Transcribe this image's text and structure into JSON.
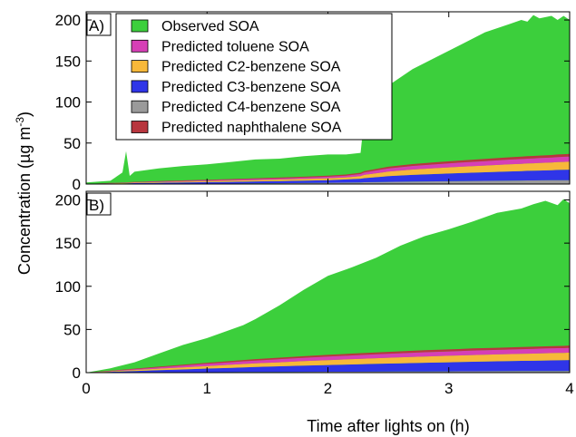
{
  "figure": {
    "ylabel_main": "Concentration (µg m",
    "ylabel_exp": "-3",
    "ylabel_close": ")",
    "xlabel": "Time after lights on (h)"
  },
  "colors": {
    "observed": "#3ccf3c",
    "toluene": "#d63fb6",
    "c2benzene": "#f7b83a",
    "c3benzene": "#2f35e8",
    "c4benzene": "#9a9a9a",
    "naphthalene": "#b8363e"
  },
  "chart_data": [
    {
      "type": "area",
      "panel_label": "A)",
      "xlim": [
        0,
        4
      ],
      "ylim": [
        0,
        210
      ],
      "x_ticks": [
        0,
        1,
        2,
        3,
        4
      ],
      "x_tick_labels": [
        "0",
        "1",
        "2",
        "3",
        "4"
      ],
      "y_ticks": [
        0,
        50,
        100,
        150,
        200
      ],
      "y_tick_labels": [
        "0",
        "50",
        "100",
        "150",
        "200"
      ],
      "legend": {
        "placement": "top-left",
        "entries": [
          "Observed SOA",
          "Predicted toluene SOA",
          "Predicted C2-benzene SOA",
          "Predicted C3-benzene SOA",
          "Predicted C4-benzene SOA",
          "Predicted naphthalene SOA"
        ]
      },
      "x": [
        0,
        0.2,
        0.3,
        0.33,
        0.36,
        0.4,
        0.6,
        0.8,
        1.0,
        1.2,
        1.4,
        1.6,
        1.8,
        2.0,
        2.15,
        2.27,
        2.3,
        2.45,
        2.5,
        2.7,
        2.9,
        3.1,
        3.3,
        3.5,
        3.6,
        3.65,
        3.7,
        3.75,
        3.85,
        3.9,
        3.95,
        4.0
      ],
      "series": [
        {
          "name": "Predicted C4-benzene SOA",
          "key": "c4benzene",
          "values": [
            0,
            0.1,
            0.1,
            0.1,
            0.2,
            0.2,
            0.3,
            0.4,
            0.5,
            0.6,
            0.8,
            1.0,
            1.2,
            1.5,
            1.8,
            2.0,
            2.2,
            2.5,
            2.6,
            3.0,
            3.3,
            3.6,
            3.9,
            4.2,
            4.3,
            4.4,
            4.4,
            4.5,
            4.6,
            4.7,
            4.7,
            4.8
          ]
        },
        {
          "name": "Predicted C3-benzene SOA",
          "key": "c3benzene",
          "values": [
            0,
            0.4,
            0.6,
            0.7,
            0.8,
            0.9,
            1.2,
            1.5,
            1.8,
            2.1,
            2.4,
            2.7,
            3.0,
            3.3,
            3.8,
            4.5,
            5.0,
            6.5,
            7.0,
            8.2,
            9.0,
            9.8,
            10.5,
            11.2,
            11.5,
            11.7,
            11.8,
            12.0,
            12.3,
            12.5,
            12.7,
            12.8
          ]
        },
        {
          "name": "Predicted C2-benzene SOA",
          "key": "c2benzene",
          "values": [
            0,
            0.3,
            0.4,
            0.5,
            0.5,
            0.6,
            0.8,
            1.0,
            1.2,
            1.4,
            1.6,
            1.8,
            2.0,
            2.3,
            2.6,
            3.2,
            4.0,
            5.2,
            5.6,
            6.5,
            7.1,
            7.7,
            8.2,
            8.7,
            8.9,
            9.0,
            9.1,
            9.2,
            9.4,
            9.5,
            9.6,
            9.7
          ]
        },
        {
          "name": "Predicted toluene SOA",
          "key": "toluene",
          "values": [
            0,
            0.3,
            0.4,
            0.4,
            0.5,
            0.5,
            0.7,
            0.9,
            1.0,
            1.2,
            1.4,
            1.5,
            1.7,
            1.9,
            2.1,
            2.6,
            3.0,
            3.7,
            3.9,
            4.4,
            4.8,
            5.1,
            5.4,
            5.7,
            5.8,
            5.9,
            6.0,
            6.0,
            6.1,
            6.2,
            6.3,
            6.3
          ]
        },
        {
          "name": "Predicted naphthalene SOA",
          "key": "naphthalene",
          "values": [
            0,
            0.2,
            0.3,
            0.3,
            0.3,
            0.4,
            0.5,
            0.6,
            0.7,
            0.8,
            0.9,
            1.0,
            1.1,
            1.2,
            1.3,
            1.5,
            1.6,
            1.9,
            2.0,
            2.2,
            2.4,
            2.5,
            2.7,
            2.8,
            2.9,
            2.9,
            3.0,
            3.0,
            3.0,
            3.1,
            3.1,
            3.1
          ]
        },
        {
          "name": "Observed SOA",
          "key": "observed",
          "total": true,
          "values": [
            2,
            4,
            14,
            40,
            10,
            15,
            19,
            22,
            24,
            27,
            30,
            31,
            34,
            36,
            36,
            38,
            80,
            110,
            120,
            140,
            155,
            170,
            185,
            195,
            200,
            198,
            206,
            202,
            205,
            200,
            205,
            200
          ]
        }
      ]
    },
    {
      "type": "area",
      "panel_label": "B)",
      "xlim": [
        0,
        4
      ],
      "ylim": [
        0,
        210
      ],
      "x_ticks": [
        0,
        1,
        2,
        3,
        4
      ],
      "x_tick_labels": [
        "0",
        "1",
        "2",
        "3",
        "4"
      ],
      "y_ticks": [
        0,
        50,
        100,
        150,
        200
      ],
      "y_tick_labels": [
        "0",
        "50",
        "100",
        "150",
        "200"
      ],
      "x": [
        0,
        0.2,
        0.4,
        0.6,
        0.8,
        1.0,
        1.2,
        1.3,
        1.4,
        1.6,
        1.8,
        2.0,
        2.2,
        2.4,
        2.6,
        2.8,
        3.0,
        3.2,
        3.4,
        3.6,
        3.7,
        3.8,
        3.9,
        3.95,
        4.0
      ],
      "series": [
        {
          "name": "Predicted C4-benzene SOA",
          "key": "c4benzene",
          "values": [
            0,
            0.1,
            0.2,
            0.3,
            0.4,
            0.5,
            0.6,
            0.7,
            0.7,
            0.8,
            0.9,
            1.0,
            1.1,
            1.2,
            1.3,
            1.4,
            1.5,
            1.6,
            1.7,
            1.8,
            1.8,
            1.9,
            1.9,
            1.9,
            2.0
          ]
        },
        {
          "name": "Predicted C3-benzene SOA",
          "key": "c3benzene",
          "values": [
            0,
            0.8,
            1.6,
            2.5,
            3.3,
            4.2,
            5.0,
            5.4,
            5.8,
            6.5,
            7.2,
            7.8,
            8.4,
            9.0,
            9.5,
            10.0,
            10.5,
            11.0,
            11.4,
            11.8,
            12.0,
            12.2,
            12.4,
            12.5,
            12.6
          ]
        },
        {
          "name": "Predicted C2-benzene SOA",
          "key": "c2benzene",
          "values": [
            0,
            0.6,
            1.2,
            1.8,
            2.4,
            3.0,
            3.6,
            3.9,
            4.2,
            4.7,
            5.2,
            5.7,
            6.1,
            6.5,
            6.9,
            7.2,
            7.5,
            7.8,
            8.0,
            8.2,
            8.3,
            8.4,
            8.5,
            8.5,
            8.6
          ]
        },
        {
          "name": "Predicted toluene SOA",
          "key": "toluene",
          "values": [
            0,
            0.5,
            1.0,
            1.5,
            2.0,
            2.5,
            2.9,
            3.1,
            3.3,
            3.6,
            3.9,
            4.2,
            4.4,
            4.6,
            4.8,
            5.0,
            5.1,
            5.2,
            5.3,
            5.4,
            5.4,
            5.5,
            5.5,
            5.5,
            5.6
          ]
        },
        {
          "name": "Predicted naphthalene SOA",
          "key": "naphthalene",
          "values": [
            0,
            0.3,
            0.6,
            0.8,
            1.0,
            1.2,
            1.4,
            1.5,
            1.6,
            1.7,
            1.8,
            1.9,
            2.0,
            2.1,
            2.2,
            2.3,
            2.3,
            2.4,
            2.4,
            2.5,
            2.5,
            2.5,
            2.6,
            2.6,
            2.6
          ]
        },
        {
          "name": "Observed SOA",
          "key": "observed",
          "total": true,
          "values": [
            0,
            5,
            12,
            22,
            32,
            40,
            50,
            55,
            62,
            78,
            96,
            112,
            122,
            133,
            147,
            158,
            166,
            175,
            185,
            190,
            195,
            199,
            194,
            201,
            196
          ]
        }
      ]
    }
  ]
}
